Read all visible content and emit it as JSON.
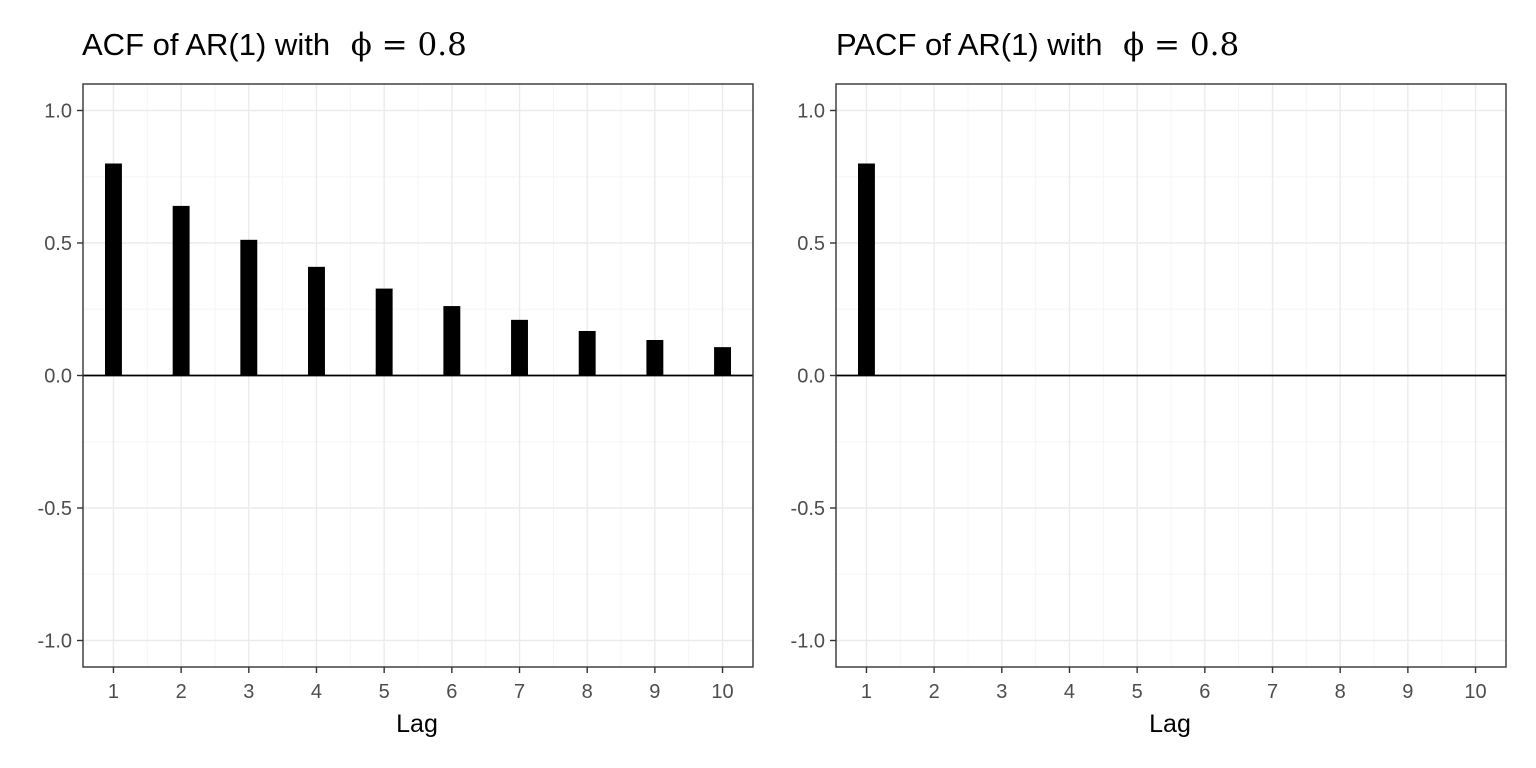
{
  "chart_data": [
    {
      "type": "bar",
      "title": "ACF of AR(1) with",
      "title_symbol": "ϕ = 0.8",
      "xlabel": "Lag",
      "ylabel": "",
      "categories": [
        1,
        2,
        3,
        4,
        5,
        6,
        7,
        8,
        9,
        10
      ],
      "values": [
        0.8,
        0.64,
        0.512,
        0.41,
        0.328,
        0.262,
        0.21,
        0.168,
        0.134,
        0.107
      ],
      "ylim": [
        -1.1,
        1.1
      ],
      "yticks": [
        -1.0,
        -0.5,
        0.0,
        0.5,
        1.0
      ],
      "ytick_labels": [
        "-1.0",
        "-0.5",
        "0.0",
        "0.5",
        "1.0"
      ],
      "xticks": [
        "1",
        "2",
        "3",
        "4",
        "5",
        "6",
        "7",
        "8",
        "9",
        "10"
      ],
      "grid": true,
      "bar_color": "#000000"
    },
    {
      "type": "bar",
      "title": "PACF of AR(1) with",
      "title_symbol": "ϕ = 0.8",
      "xlabel": "Lag",
      "ylabel": "",
      "categories": [
        1,
        2,
        3,
        4,
        5,
        6,
        7,
        8,
        9,
        10
      ],
      "values": [
        0.8,
        0,
        0,
        0,
        0,
        0,
        0,
        0,
        0,
        0
      ],
      "ylim": [
        -1.1,
        1.1
      ],
      "yticks": [
        -1.0,
        -0.5,
        0.0,
        0.5,
        1.0
      ],
      "ytick_labels": [
        "-1.0",
        "-0.5",
        "0.0",
        "0.5",
        "1.0"
      ],
      "xticks": [
        "1",
        "2",
        "3",
        "4",
        "5",
        "6",
        "7",
        "8",
        "9",
        "10"
      ],
      "grid": true,
      "bar_color": "#000000"
    }
  ],
  "colors": {
    "grid_major": "#ebebeb",
    "grid_minor": "#f5f5f5",
    "panel_border": "#333333",
    "zero_line": "#000000"
  }
}
